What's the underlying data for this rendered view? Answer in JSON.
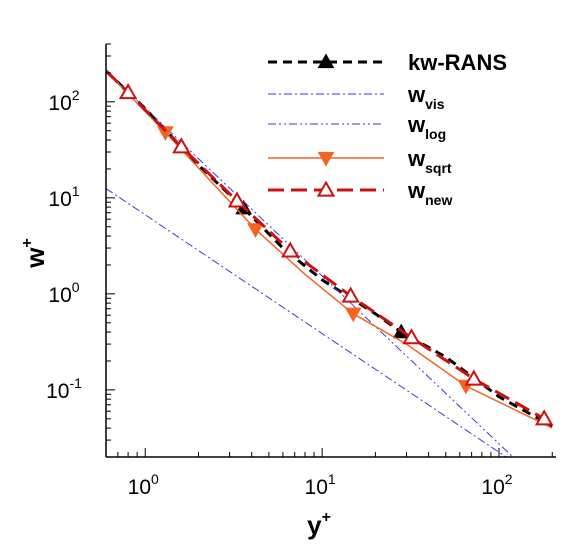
{
  "chart_data": {
    "type": "line",
    "xscale": "log",
    "yscale": "log",
    "xlim": [
      0.6,
      210
    ],
    "ylim": [
      0.02,
      400
    ],
    "xlabel": {
      "base": "y",
      "sup": "+"
    },
    "ylabel": {
      "base": "w",
      "sup": "+"
    },
    "xticks": [
      {
        "value": 1,
        "base": "10",
        "exp": "0"
      },
      {
        "value": 10,
        "base": "10",
        "exp": "1"
      },
      {
        "value": 100,
        "base": "10",
        "exp": "2"
      }
    ],
    "yticks": [
      {
        "value": 0.1,
        "base": "10",
        "exp": "-1"
      },
      {
        "value": 1,
        "base": "10",
        "exp": "0"
      },
      {
        "value": 10,
        "base": "10",
        "exp": "1"
      },
      {
        "value": 100,
        "base": "10",
        "exp": "2"
      }
    ],
    "legend_position": "top-right",
    "series": [
      {
        "name": "kw-RANS",
        "name_sub": "",
        "color": "#000000",
        "dash": "9,6",
        "width": 3,
        "marker": "triangle-up-filled",
        "x": [
          0.6,
          1,
          2,
          3.6,
          6,
          10,
          20,
          28,
          50,
          100,
          200
        ],
        "y": [
          210,
          85,
          22,
          7.8,
          3.0,
          1.4,
          0.62,
          0.4,
          0.22,
          0.085,
          0.042
        ],
        "markers_x": [
          3.6,
          28
        ],
        "markers_y": [
          7.8,
          0.4
        ]
      },
      {
        "name": "w",
        "name_sub": "vis",
        "color": "#3a3ad6",
        "dash": "8,3,2,3",
        "width": 1,
        "marker": "none",
        "x": [
          0.6,
          200
        ],
        "y": [
          12.5,
          0.0095
        ],
        "markers_x": [],
        "markers_y": []
      },
      {
        "name": "w",
        "name_sub": "log",
        "color": "#3a3ad6",
        "dash": "8,3,2,3,2,3",
        "width": 1,
        "marker": "none",
        "x": [
          0.6,
          210
        ],
        "y": [
          210,
          0.0075
        ],
        "markers_x": [],
        "markers_y": []
      },
      {
        "name": "w",
        "name_sub": "sqrt",
        "color": "#f26522",
        "dash": "",
        "width": 1.5,
        "marker": "triangle-down-filled",
        "x": [
          0.6,
          1.3,
          4.2,
          8,
          15,
          30,
          65,
          200
        ],
        "y": [
          210,
          48,
          4.7,
          1.6,
          0.62,
          0.3,
          0.11,
          0.04
        ],
        "markers_x": [
          1.3,
          4.2,
          15,
          65
        ],
        "markers_y": [
          48,
          4.7,
          0.62,
          0.11
        ]
      },
      {
        "name": "w",
        "name_sub": "new",
        "color": "#cc1111",
        "dash": "16,7",
        "width": 3,
        "marker": "triangle-up-open",
        "x": [
          0.6,
          0.8,
          1.6,
          3.3,
          6.6,
          14.5,
          32,
          72,
          180,
          200
        ],
        "y": [
          210,
          125,
          34,
          9.3,
          2.8,
          0.95,
          0.35,
          0.13,
          0.05,
          0.044
        ],
        "markers_x": [
          0.8,
          1.6,
          3.3,
          6.6,
          14.5,
          32,
          72,
          180
        ],
        "markers_y": [
          125,
          34,
          9.3,
          2.8,
          0.95,
          0.35,
          0.13,
          0.05
        ]
      }
    ]
  }
}
